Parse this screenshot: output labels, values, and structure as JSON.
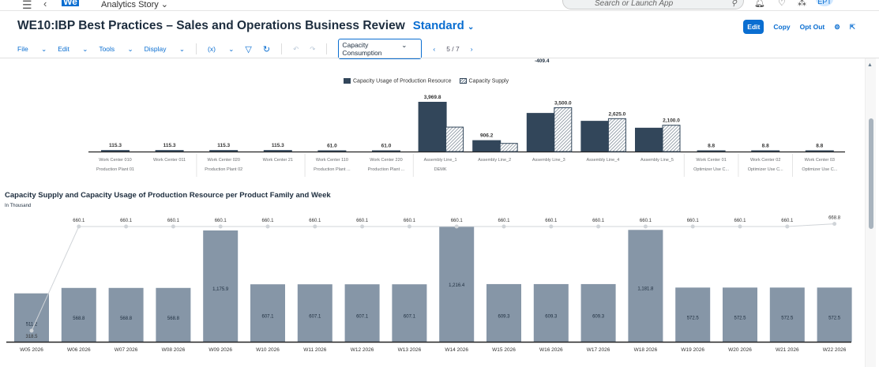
{
  "shell": {
    "app_name": "Analytics Story",
    "logo": "We",
    "search_placeholder": "Search or Launch App",
    "avatar": "EPT"
  },
  "header": {
    "title": "WE10:IBP Best Practices – Sales and Operations Business Review",
    "variant": "Standard",
    "actions": {
      "edit": "Edit",
      "copy": "Copy",
      "opt_out": "Opt Out"
    }
  },
  "toolbar": {
    "file": "File",
    "edit": "Edit",
    "tools": "Tools",
    "display": "Display",
    "formula": "(x)",
    "page_select": "Capacity Consumption",
    "page_indicator": "5 / 7"
  },
  "colors": {
    "accent": "#0a6ed1",
    "usage": "#32465a",
    "bottom_bar": "#8696a7",
    "line": "#d0d4d8"
  },
  "clipped_label": "-409.4",
  "chart_data": [
    {
      "type": "bar",
      "title": "",
      "legend": [
        "Capacity Usage of Production Resource",
        "Capacity Supply"
      ],
      "legend_position": "top",
      "categories": [
        {
          "resource": "Work Center 010",
          "group": "Production Plant 01"
        },
        {
          "resource": "Work Center 011",
          "group": ""
        },
        {
          "resource": "Work Center 020",
          "group": "Production Plant 02"
        },
        {
          "resource": "Work Center 21",
          "group": ""
        },
        {
          "resource": "Work Center 110",
          "group": "Production Plant ..."
        },
        {
          "resource": "Work Center 220",
          "group": "Production Plant ..."
        },
        {
          "resource": "Assembly Line_1",
          "group": "DEMK"
        },
        {
          "resource": "Assembly Line_2",
          "group": ""
        },
        {
          "resource": "Assembly Line_3",
          "group": ""
        },
        {
          "resource": "Assembly Line_4",
          "group": ""
        },
        {
          "resource": "Assembly Line_5",
          "group": ""
        },
        {
          "resource": "Work Center 01",
          "group": "Optimizer Use C..."
        },
        {
          "resource": "Work Center 02",
          "group": "Optimizer Use C..."
        },
        {
          "resource": "Work Center 03",
          "group": "Optimizer Use C..."
        }
      ],
      "series": [
        {
          "name": "Capacity Usage of Production Resource",
          "values": [
            115.3,
            115.3,
            115.3,
            115.3,
            61.0,
            61.0,
            3969.8,
            906.2,
            3080,
            2450,
            1900,
            8.8,
            8.8,
            8.8
          ]
        },
        {
          "name": "Capacity Supply",
          "values": [
            null,
            null,
            null,
            null,
            null,
            null,
            1950,
            650,
            3500.0,
            2625.0,
            2100.0,
            null,
            null,
            null
          ]
        }
      ],
      "labels": [
        "115.3",
        "115.3",
        "115.3",
        "115.3",
        "61.0",
        "61.0",
        "3,969.8",
        "906.2",
        "3,500.0",
        "2,625.0",
        "2,100.0",
        "8.8",
        "8.8",
        "8.8"
      ],
      "ylim": [
        0,
        4000
      ]
    },
    {
      "type": "bar",
      "title": "Capacity Supply and Capacity Usage of Production Resource per Product Family and Week",
      "subtitle": "In Thousand",
      "categories": [
        "W05 2026",
        "W06 2026",
        "W07 2026",
        "W08 2026",
        "W09 2026",
        "W10 2026",
        "W11 2026",
        "W12 2026",
        "W13 2026",
        "W14 2026",
        "W15 2026",
        "W16 2026",
        "W17 2026",
        "W18 2026",
        "W19 2026",
        "W20 2026",
        "W21 2026",
        "W22 2026"
      ],
      "series": [
        {
          "name": "Capacity Usage",
          "type": "bar",
          "values": [
            511.2,
            568.8,
            568.8,
            568.8,
            1175.9,
            607.1,
            607.1,
            607.1,
            607.1,
            1216.4,
            609.3,
            609.3,
            609.3,
            1181.8,
            572.5,
            572.5,
            572.5,
            572.5
          ],
          "labels": [
            "511.2",
            "568.8",
            "568.8",
            "568.8",
            "1,175.9",
            "607.1",
            "607.1",
            "607.1",
            "607.1",
            "1,216.4",
            "609.3",
            "609.3",
            "609.3",
            "1,181.8",
            "572.5",
            "572.5",
            "572.5",
            "572.5"
          ]
        },
        {
          "name": "Capacity Supply",
          "type": "line",
          "values": [
            318.5,
            660.1,
            660.1,
            660.1,
            660.1,
            660.1,
            660.1,
            660.1,
            660.1,
            660.1,
            660.1,
            660.1,
            660.1,
            660.1,
            660.1,
            660.1,
            660.1,
            668.8
          ],
          "labels": [
            "318.5",
            "660.1",
            "660.1",
            "660.1",
            "660.1",
            "660.1",
            "660.1",
            "660.1",
            "660.1",
            "660.1",
            "660.1",
            "660.1",
            "660.1",
            "660.1",
            "660.1",
            "660.1",
            "660.1",
            "668.8"
          ]
        }
      ]
    }
  ]
}
